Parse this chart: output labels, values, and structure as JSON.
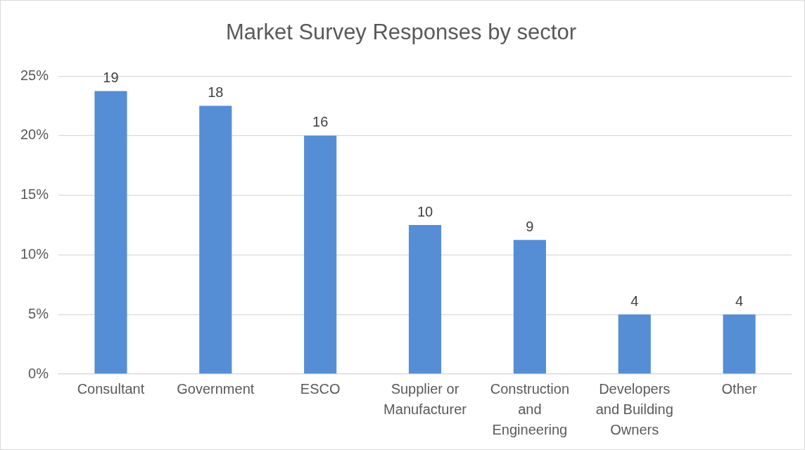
{
  "chart_data": {
    "type": "bar",
    "title": "Market Survey Responses by sector",
    "categories": [
      "Consultant",
      "Government",
      "ESCO",
      "Supplier or Manufacturer",
      "Construction and Engineering",
      "Developers and Building Owners",
      "Other"
    ],
    "values": [
      23.75,
      22.5,
      20,
      12.5,
      11.25,
      5,
      5
    ],
    "annotations": [
      {
        "text": "19",
        "x": "Consultant",
        "y": 23.75
      },
      {
        "text": "18",
        "x": "Government",
        "y": 22.5
      },
      {
        "text": "16",
        "x": "ESCO",
        "y": 20
      },
      {
        "text": "10",
        "x": "Supplier or Manufacturer",
        "y": 12.5
      },
      {
        "text": "9",
        "x": "Construction and Engineering",
        "y": 11.25
      },
      {
        "text": "4",
        "x": "Developers and Building Owners",
        "y": 5
      },
      {
        "text": "4",
        "x": "Other",
        "y": 5
      }
    ],
    "color": "#558ed5",
    "ylim": [
      0,
      25
    ],
    "yticks": [
      {
        "value": 0,
        "label": "0%"
      },
      {
        "value": 5,
        "label": "5%"
      },
      {
        "value": 10,
        "label": "10%"
      },
      {
        "value": 15,
        "label": "15%"
      },
      {
        "value": 20,
        "label": "20%"
      },
      {
        "value": 25,
        "label": "25%"
      }
    ],
    "grid": "y",
    "legend": false
  }
}
